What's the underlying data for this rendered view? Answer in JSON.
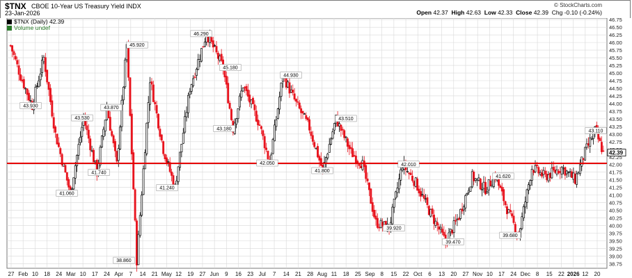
{
  "header": {
    "symbol": "$TNX",
    "name": "CBOE 10-Year US Treasury Yield INDX",
    "date": "23-Jan-2026",
    "copyright": "© StockCharts.com",
    "open_label": "Open",
    "open": "42.37",
    "high_label": "High",
    "high": "42.63",
    "low_label": "Low",
    "low": "42.33",
    "close_label": "Close",
    "close": "42.39",
    "change": "Chg -0.10 (-0.24%)"
  },
  "legend": {
    "price": "$TNX (Daily) 42.39",
    "volume": "Volume undef"
  },
  "colors": {
    "up": "#000000",
    "down": "#e8141e",
    "hline": "#e60000",
    "grid": "#d8d8d8"
  },
  "chart_data": {
    "type": "candlestick",
    "y_range": [
      38.6,
      46.8
    ],
    "y_ticks": [
      "38.75",
      "39.00",
      "39.25",
      "39.50",
      "39.75",
      "40.00",
      "40.25",
      "40.50",
      "40.75",
      "41.00",
      "41.25",
      "41.50",
      "41.75",
      "42.00",
      "42.25",
      "42.50",
      "42.75",
      "43.00",
      "43.25",
      "43.50",
      "43.75",
      "44.00",
      "44.25",
      "44.50",
      "44.75",
      "45.00",
      "45.25",
      "45.50",
      "45.75",
      "46.00",
      "46.25",
      "46.50",
      "46.75"
    ],
    "x_ticks": [
      "27",
      "Feb",
      "10",
      "18",
      "24",
      "Mar",
      "10",
      "17",
      "24",
      "Apr",
      "7",
      "14",
      "21",
      "May",
      "12",
      "19",
      "27",
      "Jun",
      "9",
      "16",
      "23",
      "Jul",
      "7",
      "14",
      "21",
      "28",
      "Aug",
      "11",
      "18",
      "25",
      "Sep",
      "8",
      "15",
      "22",
      "Oct",
      "6",
      "13",
      "20",
      "27",
      "Nov",
      "10",
      "17",
      "24",
      "Dec",
      "8",
      "15",
      "22",
      "2026",
      "12",
      "20"
    ],
    "horizontal_line": 42.04,
    "last_value": "42.39",
    "annotations": [
      {
        "text": "43.930",
        "value": 43.93
      },
      {
        "text": "43.530",
        "value": 43.53
      },
      {
        "text": "43.870",
        "value": 43.87
      },
      {
        "text": "41.740",
        "value": 41.74
      },
      {
        "text": "41.060",
        "value": 41.06
      },
      {
        "text": "45.920",
        "value": 45.92
      },
      {
        "text": "38.860",
        "value": 38.86
      },
      {
        "text": "41.240",
        "value": 41.24
      },
      {
        "text": "46.290",
        "value": 46.29
      },
      {
        "text": "45.180",
        "value": 45.18
      },
      {
        "text": "43.180",
        "value": 43.18
      },
      {
        "text": "44.930",
        "value": 44.93
      },
      {
        "text": "42.050",
        "value": 42.05
      },
      {
        "text": "43.510",
        "value": 43.51
      },
      {
        "text": "41.800",
        "value": 41.8
      },
      {
        "text": "42.010",
        "value": 42.01
      },
      {
        "text": "39.920",
        "value": 39.92
      },
      {
        "text": "39.470",
        "value": 39.47
      },
      {
        "text": "41.620",
        "value": 41.62
      },
      {
        "text": "39.680",
        "value": 39.68
      },
      {
        "text": "43.110",
        "value": 43.11
      }
    ]
  }
}
